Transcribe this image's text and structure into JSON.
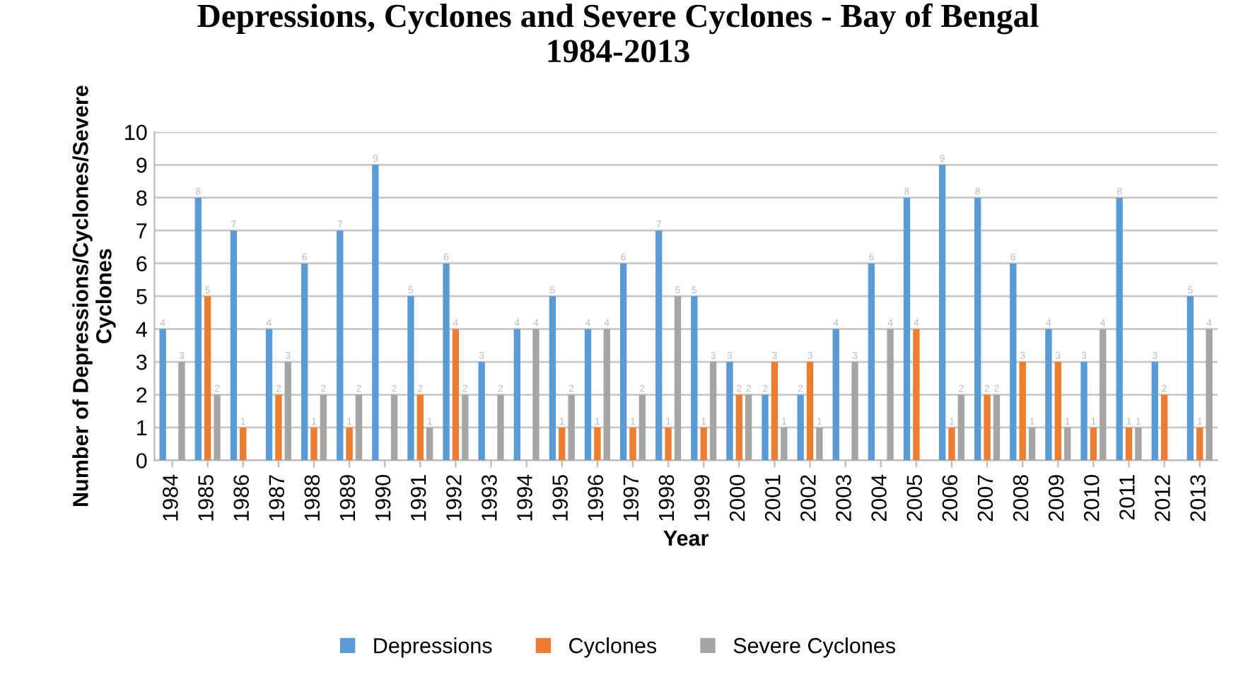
{
  "chart_data": {
    "type": "bar",
    "title": "Depressions, Cyclones and Severe Cyclones - Bay of Bengal\n1984-2013",
    "xlabel": "Year",
    "ylabel": "Number of Depressions/Cyclones/Severe\nCyclones",
    "categories": [
      "1984",
      "1985",
      "1986",
      "1987",
      "1988",
      "1989",
      "1990",
      "1991",
      "1992",
      "1993",
      "1994",
      "1995",
      "1996",
      "1997",
      "1998",
      "1999",
      "2000",
      "2001",
      "2002",
      "2003",
      "2004",
      "2005",
      "2006",
      "2007",
      "2008",
      "2009",
      "2010",
      "2011",
      "2012",
      "2013"
    ],
    "series": [
      {
        "name": "Depressions",
        "color": "#5b9bd5",
        "values": [
          4,
          8,
          7,
          4,
          6,
          7,
          9,
          5,
          6,
          3,
          4,
          5,
          4,
          6,
          7,
          5,
          3,
          2,
          2,
          4,
          6,
          8,
          9,
          8,
          6,
          4,
          3,
          8,
          3,
          5
        ],
        "value_labels": [
          "4",
          "8",
          "7",
          "4",
          "6",
          "7",
          "9",
          "5",
          "6",
          "3",
          "4",
          "5",
          "4",
          "6",
          "7",
          "5",
          "3",
          "2",
          "2",
          "4",
          "6",
          "8",
          "9",
          "8",
          "6",
          "4",
          "3",
          "8",
          "3",
          "5"
        ]
      },
      {
        "name": "Cyclones",
        "color": "#ed7d31",
        "values": [
          0,
          5,
          1,
          2,
          1,
          1,
          0,
          2,
          4,
          0,
          0,
          1,
          1,
          1,
          1,
          1,
          2,
          3,
          3,
          0,
          0,
          4,
          1,
          2,
          3,
          3,
          1,
          1,
          2,
          1
        ],
        "value_labels": [
          null,
          "5",
          "1",
          "2",
          "1",
          "1",
          null,
          "2",
          "4",
          null,
          null,
          "1",
          "1",
          "1",
          "1",
          "1",
          "2",
          "3",
          "3",
          null,
          null,
          "4",
          "1",
          "2",
          "3",
          "3",
          "1",
          "1",
          "2",
          "1"
        ]
      },
      {
        "name": "Severe Cyclones",
        "color": "#a5a5a5",
        "values": [
          3,
          2,
          0,
          3,
          2,
          2,
          2,
          1,
          2,
          2,
          4,
          2,
          4,
          2,
          5,
          3,
          2,
          1,
          1,
          3,
          4,
          0,
          2,
          2,
          1,
          1,
          4,
          1,
          0,
          4
        ],
        "value_labels": [
          "3",
          "2",
          null,
          "3",
          "2",
          "2",
          "2",
          "1",
          "2",
          "2",
          "4",
          "2",
          "4",
          "2",
          "5",
          "3",
          "2",
          "1",
          "1",
          "3",
          "4",
          null,
          "2",
          "2",
          "1",
          "1",
          "4",
          "1",
          null,
          "4"
        ]
      }
    ],
    "ylim": [
      0,
      10
    ],
    "yticks": [
      0,
      1,
      2,
      3,
      4,
      5,
      6,
      7,
      8,
      9,
      10
    ],
    "grid": "y",
    "legend": "bottom"
  }
}
